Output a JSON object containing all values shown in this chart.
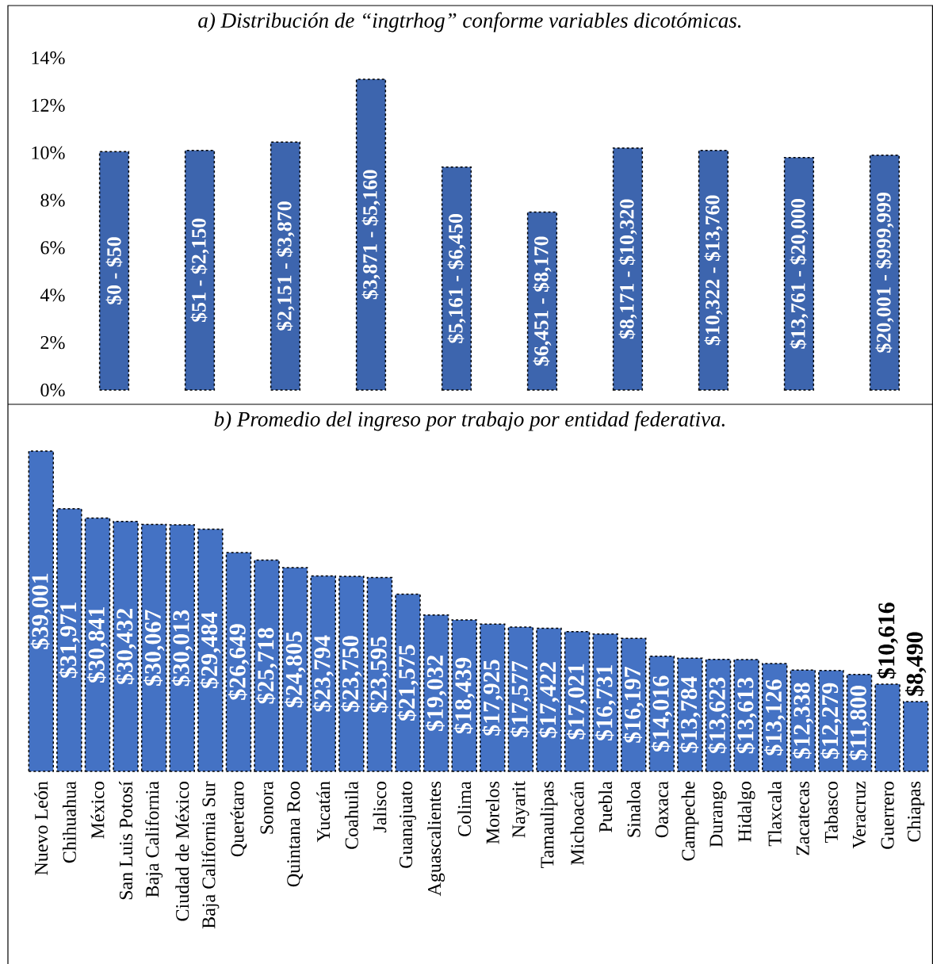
{
  "chart_data": [
    {
      "type": "bar",
      "title": "a) Distribución de “ingtrhog” conforme variables dicotómicas.",
      "categories": [
        "$0 - $50",
        "$51 - $2,150",
        "$2,151 - $3,870",
        "$3,871 - $5,160",
        "$5,161 - $6,450",
        "$6,451 - $8,170",
        "$8,171 - $10,320",
        "$10,322 - $13,760",
        "$13,761 - $20,000",
        "$20,001 - $999,999"
      ],
      "values": [
        10.05,
        10.1,
        10.45,
        13.1,
        9.4,
        7.5,
        10.2,
        10.1,
        9.8,
        9.9
      ],
      "color": "#3d65ae",
      "ylim": [
        0,
        14
      ],
      "yticks": [
        {
          "value": 0,
          "label": "0%"
        },
        {
          "value": 2,
          "label": "2%"
        },
        {
          "value": 4,
          "label": "4%"
        },
        {
          "value": 6,
          "label": "6%"
        },
        {
          "value": 8,
          "label": "8%"
        },
        {
          "value": 10,
          "label": "10%"
        },
        {
          "value": 12,
          "label": "12%"
        },
        {
          "value": 14,
          "label": "14%"
        }
      ]
    },
    {
      "type": "bar",
      "title": "b) Promedio del ingreso por trabajo por entidad federativa.",
      "categories": [
        "Nuevo León",
        "Chihuahua",
        "México",
        "San Luis Potosí",
        "Baja California",
        "Ciudad de México",
        "Baja California Sur",
        "Querétaro",
        "Sonora",
        "Quintana Roo",
        "Yucatán",
        "Coahuila",
        "Jalisco",
        "Guanajuato",
        "Aguascalientes",
        "Colima",
        "Morelos",
        "Nayarit",
        "Tamaulipas",
        "Michoacán",
        "Puebla",
        "Sinaloa",
        "Oaxaca",
        "Campeche",
        "Durango",
        "Hidalgo",
        "Tlaxcala",
        "Zacatecas",
        "Tabasco",
        "Veracruz",
        "Guerrero",
        "Chiapas"
      ],
      "values": [
        39001,
        31971,
        30841,
        30432,
        30067,
        30013,
        29484,
        26649,
        25718,
        24805,
        23794,
        23750,
        23595,
        21575,
        19032,
        18439,
        17925,
        17577,
        17422,
        17021,
        16731,
        16197,
        14016,
        13784,
        13623,
        13613,
        13126,
        12338,
        12279,
        11800,
        10616,
        8490
      ],
      "value_labels": [
        "$39,001",
        "$31,971",
        "$30,841",
        "$30,432",
        "$30,067",
        "$30,013",
        "$29,484",
        "$26,649",
        "$25,718",
        "$24,805",
        "$23,794",
        "$23,750",
        "$23,595",
        "$21,575",
        "$19,032",
        "$18,439",
        "$17,925",
        "$17,577",
        "$17,422",
        "$17,021",
        "$16,731",
        "$16,197",
        "$14,016",
        "$13,784",
        "$13,623",
        "$13,613",
        "$13,126",
        "$12,338",
        "$12,279",
        "$11,800",
        "$10,616",
        "$8,490"
      ],
      "color": "#4472c4"
    }
  ]
}
